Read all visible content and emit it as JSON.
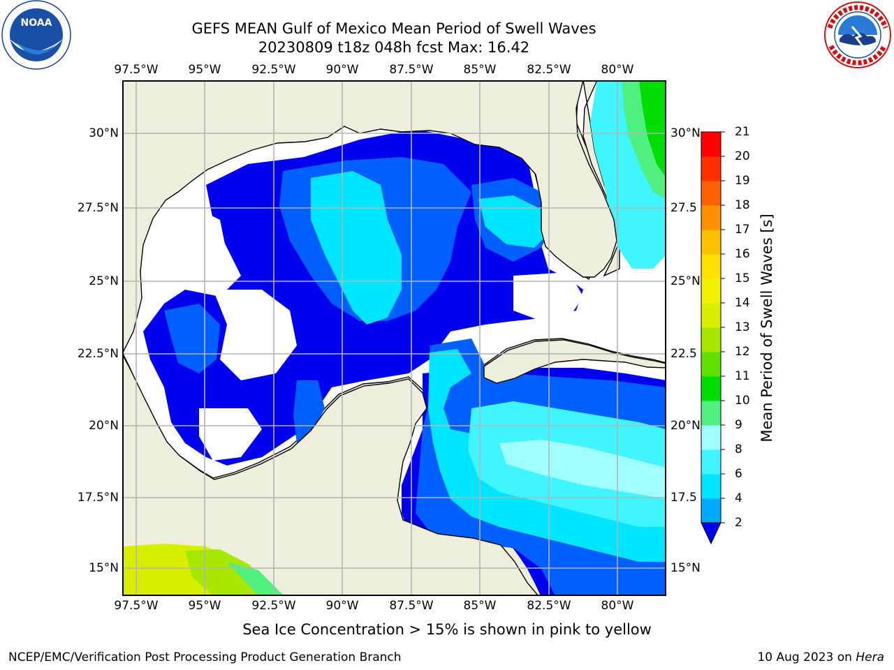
{
  "title": {
    "line1": "GEFS MEAN Gulf of Mexico Mean Period of Swell Waves",
    "line2": "20230809 t18z 048h fcst   Max: 16.42"
  },
  "map": {
    "lon_ticks": [
      "97.5°W",
      "95°W",
      "92.5°W",
      "90°W",
      "87.5°W",
      "85°W",
      "82.5°W",
      "80°W"
    ],
    "lat_ticks_left": [
      "30°N",
      "27.5°N",
      "25°N",
      "22.5°N",
      "20°N",
      "17.5°N",
      "15°N"
    ],
    "lat_ticks_right": [
      "30°N",
      "27.5",
      "25°N",
      "22.5",
      "20°N",
      "17.5",
      "15°N"
    ],
    "land_color": "#eeeedd",
    "grid_color": "#b4b4b4"
  },
  "colorbar": {
    "title": "Mean Period of Swell Waves [s]",
    "labels": [
      "2",
      "4",
      "6",
      "8",
      "9",
      "10",
      "11",
      "12",
      "13",
      "14",
      "15",
      "16",
      "17",
      "18",
      "19",
      "20",
      "21"
    ],
    "colors": [
      "#0060ff",
      "#00aaff",
      "#00e5ff",
      "#40f5ff",
      "#a0ffff",
      "#50f080",
      "#00dd00",
      "#60e000",
      "#a8e800",
      "#d8f000",
      "#f0f000",
      "#ffe000",
      "#ffc000",
      "#ff9000",
      "#ff6000",
      "#ff3000",
      "#ff0000"
    ],
    "under_color": "#0000ee"
  },
  "footnote": "Sea Ice Concentration > 15% is shown in pink to yellow",
  "footer": {
    "left": "NCEP/EMC/Verification Post Processing Product Generation Branch",
    "right_date": "10 Aug 2023 on",
    "right_host": "Hera"
  },
  "logos": {
    "left": "noaa-logo",
    "left_text": "NOAA",
    "right": "nws-logo",
    "right_text": "NATIONAL WEATHER SERVICE"
  }
}
